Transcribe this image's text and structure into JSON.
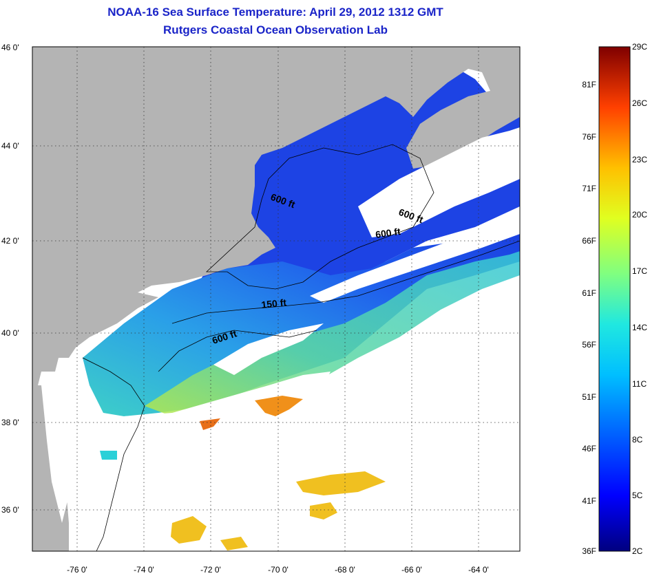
{
  "title_line1": "NOAA-16 Sea Surface Temperature:  April 29, 2012 1312 GMT",
  "title_line2": "Rutgers Coastal Ocean Observation Lab",
  "lat_labels": [
    "46 0'",
    "44 0'",
    "42 0'",
    "40 0'",
    "38 0'",
    "36 0'"
  ],
  "lon_labels": [
    "-76 0'",
    "-74 0'",
    "-72 0'",
    "-70 0'",
    "-68 0'",
    "-66 0'",
    "-64 0'"
  ],
  "depth_labels": [
    "600 ft",
    "600 ft",
    "600 ft",
    "150 ft",
    "600 ft"
  ],
  "colorbar": {
    "celsius": [
      "29C",
      "26C",
      "23C",
      "20C",
      "17C",
      "14C",
      "11C",
      "8C",
      "5C",
      "2C"
    ],
    "fahrenheit": [
      "81F",
      "76F",
      "71F",
      "66F",
      "61F",
      "56F",
      "51F",
      "46F",
      "41F",
      "36F"
    ]
  },
  "colors": {
    "title": "#1a24c8",
    "land": "#b4b4b4",
    "cloud": "#ffffff",
    "water_cold": "#1e46e6",
    "water_warm": "#f0c020"
  }
}
